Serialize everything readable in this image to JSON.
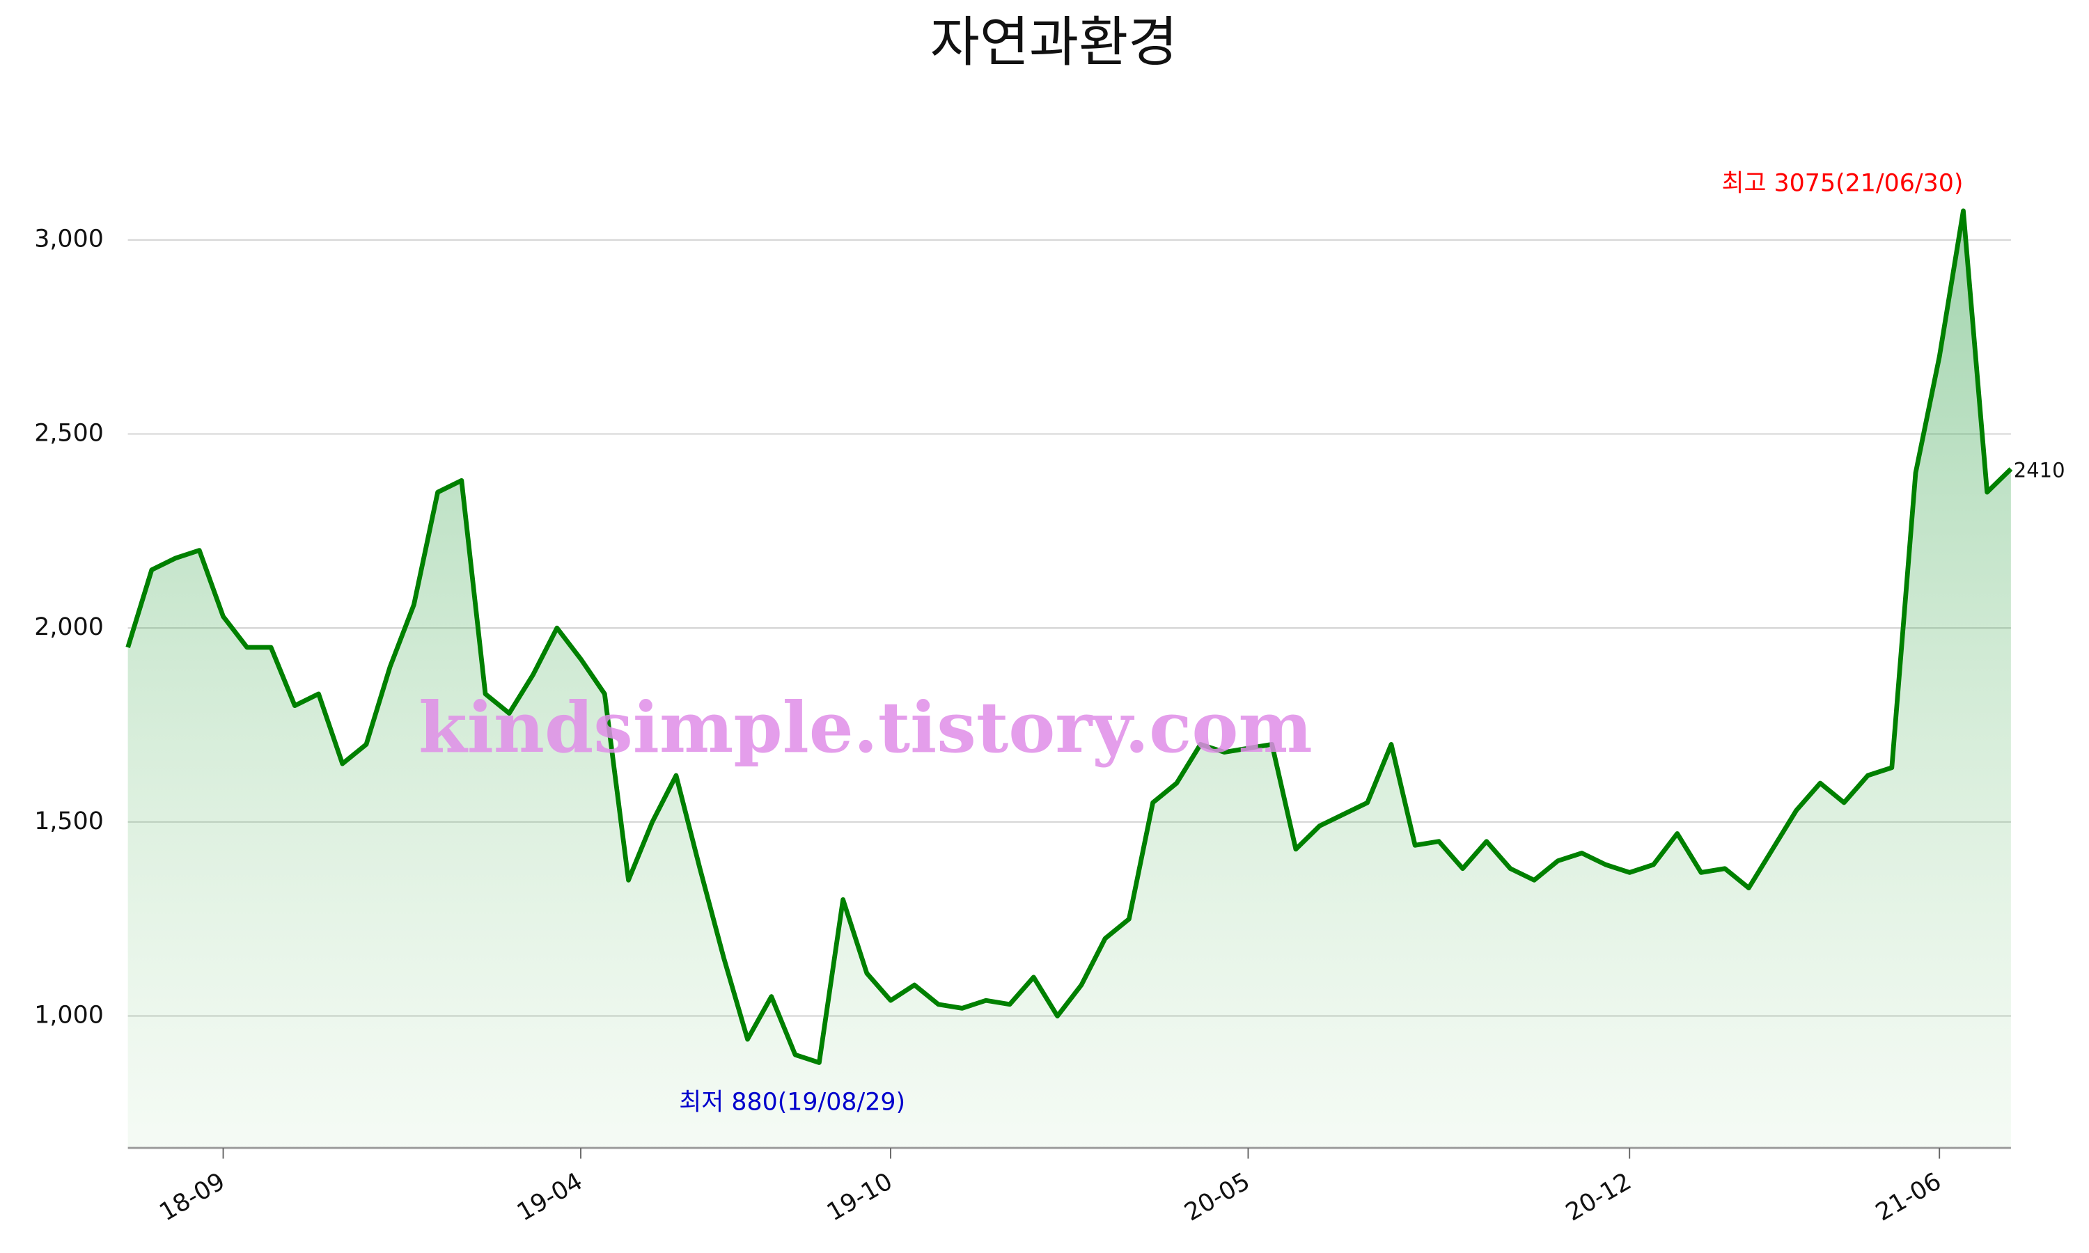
{
  "chart_data": {
    "type": "area-line",
    "title": "자연과환경",
    "categories": [
      "18/07/13",
      "18/07/27",
      "18/08/10",
      "18/08/24",
      "18/09/07",
      "18/09/21",
      "18/10/05",
      "18/10/19",
      "18/11/02",
      "18/11/16",
      "18/11/30",
      "18/12/14",
      "18/12/28",
      "19/01/11",
      "19/01/25",
      "19/02/08",
      "19/02/22",
      "19/03/08",
      "19/03/22",
      "19/04/05",
      "19/04/19",
      "19/05/03",
      "19/05/17",
      "19/05/31",
      "19/06/14",
      "19/06/28",
      "19/07/12",
      "19/07/26",
      "19/08/09",
      "19/08/29",
      "19/09/06",
      "19/09/20",
      "19/10/04",
      "19/10/18",
      "19/11/01",
      "19/11/15",
      "19/11/29",
      "19/12/13",
      "19/12/27",
      "20/01/10",
      "20/01/24",
      "20/02/07",
      "20/02/21",
      "20/03/06",
      "20/03/20",
      "20/04/03",
      "20/04/17",
      "20/05/01",
      "20/05/15",
      "20/05/29",
      "20/06/12",
      "20/06/26",
      "20/07/10",
      "20/07/24",
      "20/08/07",
      "20/08/21",
      "20/09/04",
      "20/09/18",
      "20/10/02",
      "20/10/16",
      "20/10/30",
      "20/11/13",
      "20/11/27",
      "20/12/11",
      "20/12/25",
      "21/01/08",
      "21/01/22",
      "21/02/05",
      "21/02/19",
      "21/03/05",
      "21/03/19",
      "21/04/02",
      "21/04/16",
      "21/04/30",
      "21/05/14",
      "21/05/28",
      "21/06/11",
      "21/06/30",
      "21/07/09",
      "21/07/23"
    ],
    "series": [
      {
        "color": "#008000",
        "values": [
          1950,
          2150,
          2180,
          2200,
          2030,
          1950,
          1950,
          1800,
          1830,
          1650,
          1700,
          1900,
          2060,
          2350,
          2380,
          1830,
          1780,
          1880,
          2000,
          1920,
          1830,
          1350,
          1500,
          1620,
          1380,
          1150,
          940,
          1050,
          900,
          880,
          1300,
          1110,
          1040,
          1080,
          1030,
          1020,
          1040,
          1030,
          1100,
          1000,
          1080,
          1200,
          1250,
          1550,
          1600,
          1700,
          1680,
          1690,
          1700,
          1430,
          1490,
          1520,
          1550,
          1700,
          1440,
          1450,
          1380,
          1450,
          1380,
          1350,
          1400,
          1420,
          1390,
          1370,
          1390,
          1470,
          1370,
          1380,
          1330,
          1430,
          1530,
          1600,
          1550,
          1620,
          1640,
          2400,
          2700,
          3075,
          2350,
          2410
        ]
      }
    ],
    "ylim": [
      660,
      3150
    ],
    "yticks": [
      {
        "value": 1000,
        "label": "1,000"
      },
      {
        "value": 1500,
        "label": "1,500"
      },
      {
        "value": 2000,
        "label": "2,000"
      },
      {
        "value": 2500,
        "label": "2,500"
      },
      {
        "value": 3000,
        "label": "3,000"
      }
    ],
    "xticks": [
      "18-09",
      "19-04",
      "19-10",
      "20-05",
      "20-12",
      "21-06"
    ],
    "grid": true,
    "annotations": [
      {
        "text": "최고 3075(21/06/30)",
        "color": "#ff0000",
        "at": "max"
      },
      {
        "text": "최저 880(19/08/29)",
        "color": "#0000cc",
        "at": "min"
      }
    ],
    "watermark": "kindsimple.tistory.com"
  }
}
